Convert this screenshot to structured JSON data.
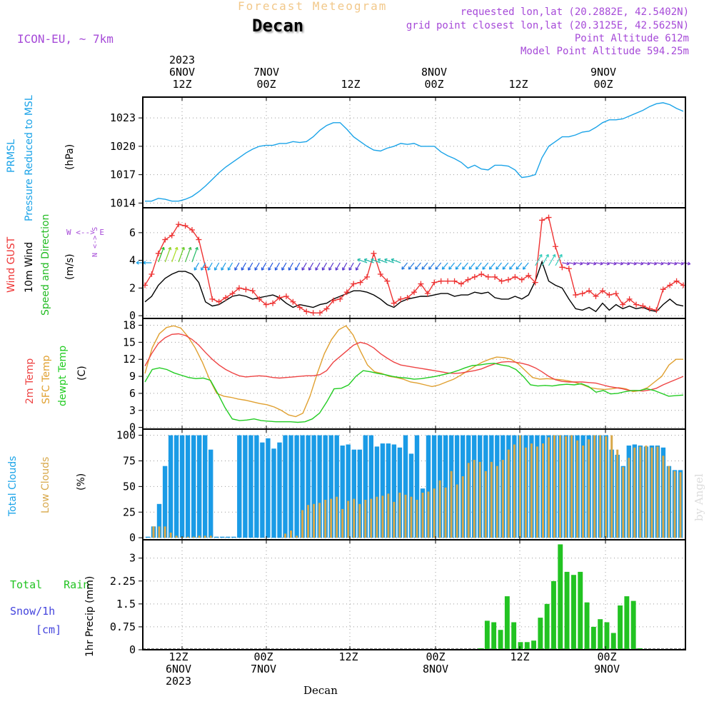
{
  "header": {
    "forecast_title": "Forecast Meteogram",
    "location": "Decan",
    "model": "ICON-EU, ~ 7km",
    "requested": "requested lon,lat (20.2882E, 42.5402N)",
    "grid_point": "grid point closest lon,lat (20.3125E, 42.5625N)",
    "point_altitude": "Point Altitude 612m",
    "model_altitude": "Model Point Altitude 594.25m"
  },
  "colors": {
    "pressure": "#1aa3e8",
    "gust": "#ee3333",
    "wind": "#000000",
    "wind_dir": "#22bb22",
    "temp2m": "#ee4444",
    "sfc": "#e0a030",
    "dewpt": "#22cc22",
    "clouds_total": "#1a9be6",
    "clouds_low": "#d8a84a",
    "rain": "#22c322",
    "snow": "#4444dd",
    "purple": "#a64ad8",
    "title_orange": "#f2c88a"
  },
  "top_axis": {
    "labels": [
      {
        "line1": "2023",
        "line2": "6NOV",
        "line3": "12Z"
      },
      {
        "line1": "",
        "line2": "7NOV",
        "line3": "00Z"
      },
      {
        "line1": "",
        "line2": "",
        "line3": "12Z"
      },
      {
        "line1": "",
        "line2": "8NOV",
        "line3": "00Z"
      },
      {
        "line1": "",
        "line2": "",
        "line3": "12Z"
      },
      {
        "line1": "",
        "line2": "9NOV",
        "line3": "00Z"
      }
    ]
  },
  "bottom_axis": {
    "labels": [
      {
        "line1": "12Z",
        "line2": "6NOV",
        "line3": "2023"
      },
      {
        "line1": "00Z",
        "line2": "7NOV",
        "line3": ""
      },
      {
        "line1": "12Z",
        "line2": "",
        "line3": ""
      },
      {
        "line1": "00Z",
        "line2": "8NOV",
        "line3": ""
      },
      {
        "line1": "12Z",
        "line2": "",
        "line3": ""
      },
      {
        "line1": "00Z",
        "line2": "9NOV",
        "line3": ""
      }
    ],
    "footer": "Decan"
  },
  "watermark": "by Angel",
  "panels": {
    "pressure": {
      "label1": "PRMSL",
      "label2": "Pressure Reduced to MSL",
      "unit": "(hPa)"
    },
    "wind": {
      "label1": "Wind GUST",
      "label2": "10m Wind",
      "label3": "Speed and Direction",
      "unit": "(m/s)",
      "compass_ns": "N <-> S",
      "compass_we": "W <--> E"
    },
    "temp": {
      "label1": "2m Temp",
      "label2": "SFC Temp",
      "label3": "dewpt Temp",
      "unit": "(C)"
    },
    "clouds": {
      "label1": "Total Clouds",
      "label2": "Low Clouds",
      "unit": "(%)"
    },
    "precip": {
      "label1": "Total",
      "label1b": "Rain",
      "label2": "Snow/1h",
      "label3": "[cm]",
      "unit": "1hr Precip (mm)"
    }
  },
  "chart_data": [
    {
      "type": "line",
      "title": "PRMSL Pressure Reduced to MSL",
      "ylabel": "hPa",
      "ylim": [
        1013.5,
        1025.2
      ],
      "yticks": [
        1014,
        1017,
        1020,
        1023
      ],
      "time_step_h": 1,
      "start": "6NOV 2023 ~04Z",
      "series": [
        {
          "name": "PRMSL",
          "values": [
            1014.2,
            1014.2,
            1014.5,
            1014.4,
            1014.2,
            1014.2,
            1014.4,
            1014.7,
            1015.2,
            1015.8,
            1016.5,
            1017.2,
            1017.8,
            1018.3,
            1018.8,
            1019.3,
            1019.7,
            1020.0,
            1020.1,
            1020.1,
            1020.3,
            1020.3,
            1020.5,
            1020.4,
            1020.5,
            1021.0,
            1021.7,
            1022.2,
            1022.5,
            1022.5,
            1021.8,
            1021.0,
            1020.5,
            1020.0,
            1019.6,
            1019.5,
            1019.8,
            1020.0,
            1020.3,
            1020.2,
            1020.3,
            1020.0,
            1020.0,
            1020.0,
            1019.4,
            1019.0,
            1018.7,
            1018.3,
            1017.7,
            1018.0,
            1017.6,
            1017.5,
            1018.0,
            1018.0,
            1017.9,
            1017.5,
            1016.7,
            1016.8,
            1017.0,
            1018.8,
            1020.0,
            1020.5,
            1021.0,
            1021.0,
            1021.2,
            1021.5,
            1021.6,
            1022.0,
            1022.5,
            1022.8,
            1022.8,
            1022.9,
            1023.2,
            1023.5,
            1023.8,
            1024.2,
            1024.5,
            1024.6,
            1024.4,
            1024.0,
            1023.7
          ]
        }
      ]
    },
    {
      "type": "line",
      "title": "Wind GUST / 10m Wind",
      "ylabel": "m/s",
      "ylim": [
        -0.2,
        7.8
      ],
      "yticks": [
        0,
        2,
        4,
        6
      ],
      "series": [
        {
          "name": "Wind GUST",
          "values": [
            2.2,
            3.0,
            4.5,
            5.5,
            5.8,
            6.6,
            6.5,
            6.2,
            5.5,
            3.5,
            1.2,
            1.0,
            1.3,
            1.6,
            2.0,
            1.9,
            1.8,
            1.2,
            0.8,
            0.9,
            1.3,
            1.4,
            1.0,
            0.6,
            0.3,
            0.2,
            0.2,
            0.5,
            1.1,
            1.2,
            1.7,
            2.3,
            2.4,
            2.8,
            4.5,
            3.0,
            2.5,
            0.9,
            1.2,
            1.3,
            1.7,
            2.3,
            1.6,
            2.4,
            2.5,
            2.5,
            2.5,
            2.3,
            2.6,
            2.8,
            3.0,
            2.8,
            2.8,
            2.5,
            2.6,
            2.8,
            2.6,
            2.9,
            2.4,
            6.9,
            7.1,
            5.0,
            3.5,
            3.4,
            1.5,
            1.6,
            1.8,
            1.4,
            1.8,
            1.5,
            1.6,
            0.8,
            1.2,
            0.8,
            0.7,
            0.5,
            0.4,
            1.9,
            2.2,
            2.5,
            2.2
          ]
        },
        {
          "name": "10m Wind",
          "values": [
            1.0,
            1.4,
            2.2,
            2.7,
            3.0,
            3.2,
            3.2,
            3.0,
            2.4,
            1.0,
            0.7,
            0.8,
            1.1,
            1.4,
            1.5,
            1.4,
            1.2,
            1.3,
            1.4,
            1.5,
            1.3,
            0.9,
            0.6,
            0.8,
            0.7,
            0.6,
            0.8,
            0.9,
            1.2,
            1.4,
            1.6,
            1.8,
            1.8,
            1.7,
            1.5,
            1.2,
            0.8,
            0.6,
            1.0,
            1.2,
            1.3,
            1.4,
            1.4,
            1.5,
            1.6,
            1.6,
            1.4,
            1.5,
            1.5,
            1.7,
            1.6,
            1.7,
            1.3,
            1.2,
            1.2,
            1.4,
            1.2,
            1.5,
            2.5,
            3.9,
            2.5,
            2.2,
            2.0,
            1.2,
            0.5,
            0.4,
            0.6,
            0.3,
            0.9,
            0.4,
            0.8,
            0.5,
            0.7,
            0.5,
            0.6,
            0.4,
            0.3,
            0.8,
            1.2,
            0.8,
            0.7
          ]
        }
      ]
    },
    {
      "type": "line",
      "title": "2m Temp / SFC Temp / dewpt Temp",
      "ylabel": "C",
      "ylim": [
        -0.3,
        19.2
      ],
      "yticks": [
        0,
        3,
        6,
        9,
        12,
        15,
        18
      ],
      "series": [
        {
          "name": "2m Temp",
          "values": [
            10.8,
            13.0,
            14.8,
            15.8,
            16.4,
            16.5,
            16.2,
            15.5,
            14.5,
            13.2,
            12.0,
            11.0,
            10.2,
            9.6,
            9.1,
            8.9,
            9.0,
            9.1,
            9.0,
            8.8,
            8.7,
            8.8,
            8.9,
            9.0,
            9.1,
            9.1,
            9.3,
            10.0,
            11.5,
            12.5,
            13.5,
            14.5,
            15.0,
            14.7,
            14.0,
            13.0,
            12.2,
            11.5,
            11.0,
            10.8,
            10.6,
            10.4,
            10.2,
            10.0,
            9.8,
            9.6,
            9.5,
            9.6,
            9.8,
            10.0,
            10.3,
            10.8,
            11.2,
            11.5,
            11.6,
            11.5,
            11.3,
            11.0,
            10.5,
            9.8,
            9.0,
            8.4,
            8.1,
            8.0,
            8.0,
            8.0,
            7.9,
            7.8,
            7.5,
            7.2,
            7.0,
            6.8,
            6.5,
            6.5,
            6.4,
            6.6,
            6.9,
            7.5,
            8.0,
            8.5,
            9.0
          ]
        },
        {
          "name": "SFC Temp",
          "values": [
            9.5,
            14.0,
            16.5,
            17.6,
            17.9,
            17.5,
            16.0,
            14.0,
            11.5,
            8.5,
            6.0,
            5.5,
            5.3,
            5.0,
            4.8,
            4.5,
            4.2,
            4.0,
            3.6,
            3.0,
            2.2,
            1.9,
            2.5,
            5.5,
            9.5,
            13.0,
            15.5,
            17.2,
            17.9,
            16.3,
            13.5,
            11.0,
            9.8,
            9.5,
            9.0,
            8.8,
            8.5,
            8.0,
            7.8,
            7.5,
            7.2,
            7.5,
            8.0,
            8.5,
            9.2,
            10.0,
            10.8,
            11.5,
            12.0,
            12.4,
            12.3,
            12.0,
            11.2,
            10.0,
            8.8,
            8.5,
            8.6,
            8.5,
            8.4,
            8.2,
            7.9,
            7.5,
            7.0,
            6.8,
            6.7,
            6.8,
            7.0,
            6.8,
            6.3,
            6.5,
            7.0,
            8.0,
            9.0,
            11.0,
            12.0,
            12.0
          ]
        },
        {
          "name": "dewpt Temp",
          "values": [
            8.0,
            10.2,
            10.5,
            10.2,
            9.6,
            9.2,
            8.8,
            8.6,
            8.7,
            8.3,
            6.0,
            3.5,
            1.5,
            1.2,
            1.3,
            1.5,
            1.2,
            1.1,
            1.0,
            1.0,
            1.0,
            0.9,
            1.0,
            1.5,
            2.5,
            4.5,
            6.8,
            6.9,
            7.5,
            9.0,
            10.0,
            9.8,
            9.5,
            9.3,
            9.0,
            8.8,
            8.7,
            8.5,
            8.6,
            8.8,
            9.0,
            9.3,
            9.6,
            10.0,
            10.5,
            10.9,
            11.0,
            11.2,
            11.3,
            11.0,
            10.8,
            10.2,
            9.0,
            7.5,
            7.3,
            7.4,
            7.3,
            7.5,
            7.6,
            7.5,
            7.7,
            7.2,
            6.2,
            6.5,
            5.9,
            6.0,
            6.3,
            6.5,
            6.5,
            6.8,
            6.5,
            6.0,
            5.5,
            5.6,
            5.7
          ]
        }
      ]
    },
    {
      "type": "bar",
      "title": "Total Clouds / Low Clouds",
      "ylabel": "%",
      "ylim": [
        -2,
        106
      ],
      "yticks": [
        0,
        25,
        50,
        75,
        100
      ],
      "series": [
        {
          "name": "Total Clouds",
          "values": [
            1,
            11,
            33,
            70,
            100,
            100,
            100,
            100,
            100,
            100,
            100,
            86,
            1,
            1,
            1,
            1,
            100,
            100,
            100,
            100,
            93,
            97,
            87,
            93,
            100,
            100,
            100,
            100,
            100,
            100,
            100,
            100,
            100,
            100,
            90,
            91,
            86,
            86,
            100,
            100,
            89,
            92,
            92,
            91,
            88,
            100,
            82,
            100,
            48,
            100,
            100,
            100,
            100,
            100,
            100,
            100,
            100,
            100,
            100,
            100,
            100,
            100,
            100,
            100,
            100,
            100,
            100,
            100,
            100,
            100,
            100,
            100,
            100,
            100,
            100,
            100,
            100,
            100,
            100,
            100,
            100,
            86,
            81,
            70,
            90,
            91,
            90,
            89,
            90,
            90,
            88,
            70,
            66,
            66
          ]
        },
        {
          "name": "Low Clouds",
          "values": [
            0,
            11,
            11,
            11,
            5,
            2,
            1,
            1,
            1,
            2,
            2,
            2,
            0,
            0,
            0,
            0,
            0,
            0,
            0,
            0,
            0,
            0,
            0,
            0,
            4,
            7,
            2,
            27,
            32,
            33,
            34,
            37,
            38,
            40,
            28,
            36,
            38,
            33,
            37,
            38,
            40,
            41,
            43,
            35,
            44,
            42,
            40,
            37,
            44,
            45,
            48,
            56,
            49,
            65,
            52,
            60,
            73,
            76,
            74,
            65,
            74,
            70,
            76,
            86,
            91,
            100,
            88,
            92,
            89,
            92,
            98,
            100,
            100,
            99,
            100,
            95,
            90,
            96,
            100,
            100,
            99,
            100,
            86,
            69,
            78,
            88,
            89,
            90,
            88,
            89,
            80,
            70,
            65,
            64
          ]
        }
      ]
    },
    {
      "type": "bar",
      "title": "1hr Precip",
      "ylabel": "mm",
      "ylim": [
        0,
        3.6
      ],
      "yticks": [
        0,
        0.75,
        1.5,
        2.25,
        3
      ],
      "series": [
        {
          "name": "Total Rain",
          "values": [
            0,
            0,
            0,
            0,
            0,
            0,
            0,
            0,
            0,
            0,
            0,
            0,
            0,
            0,
            0,
            0,
            0,
            0,
            0,
            0,
            0,
            0,
            0,
            0,
            0,
            0,
            0,
            0,
            0,
            0,
            0,
            0,
            0,
            0,
            0,
            0,
            0,
            0,
            0,
            0,
            0,
            0,
            0,
            0,
            0,
            0,
            0,
            0,
            0,
            0,
            0.05,
            0.95,
            0.9,
            0.65,
            1.75,
            0.9,
            0.25,
            0.25,
            0.3,
            1.05,
            1.5,
            2.25,
            3.45,
            2.55,
            2.45,
            2.55,
            1.55,
            0.75,
            1.0,
            0.9,
            0.55,
            1.45,
            1.75,
            1.6,
            0.05,
            0,
            0.02,
            0.02,
            0,
            0,
            0
          ]
        }
      ]
    }
  ]
}
